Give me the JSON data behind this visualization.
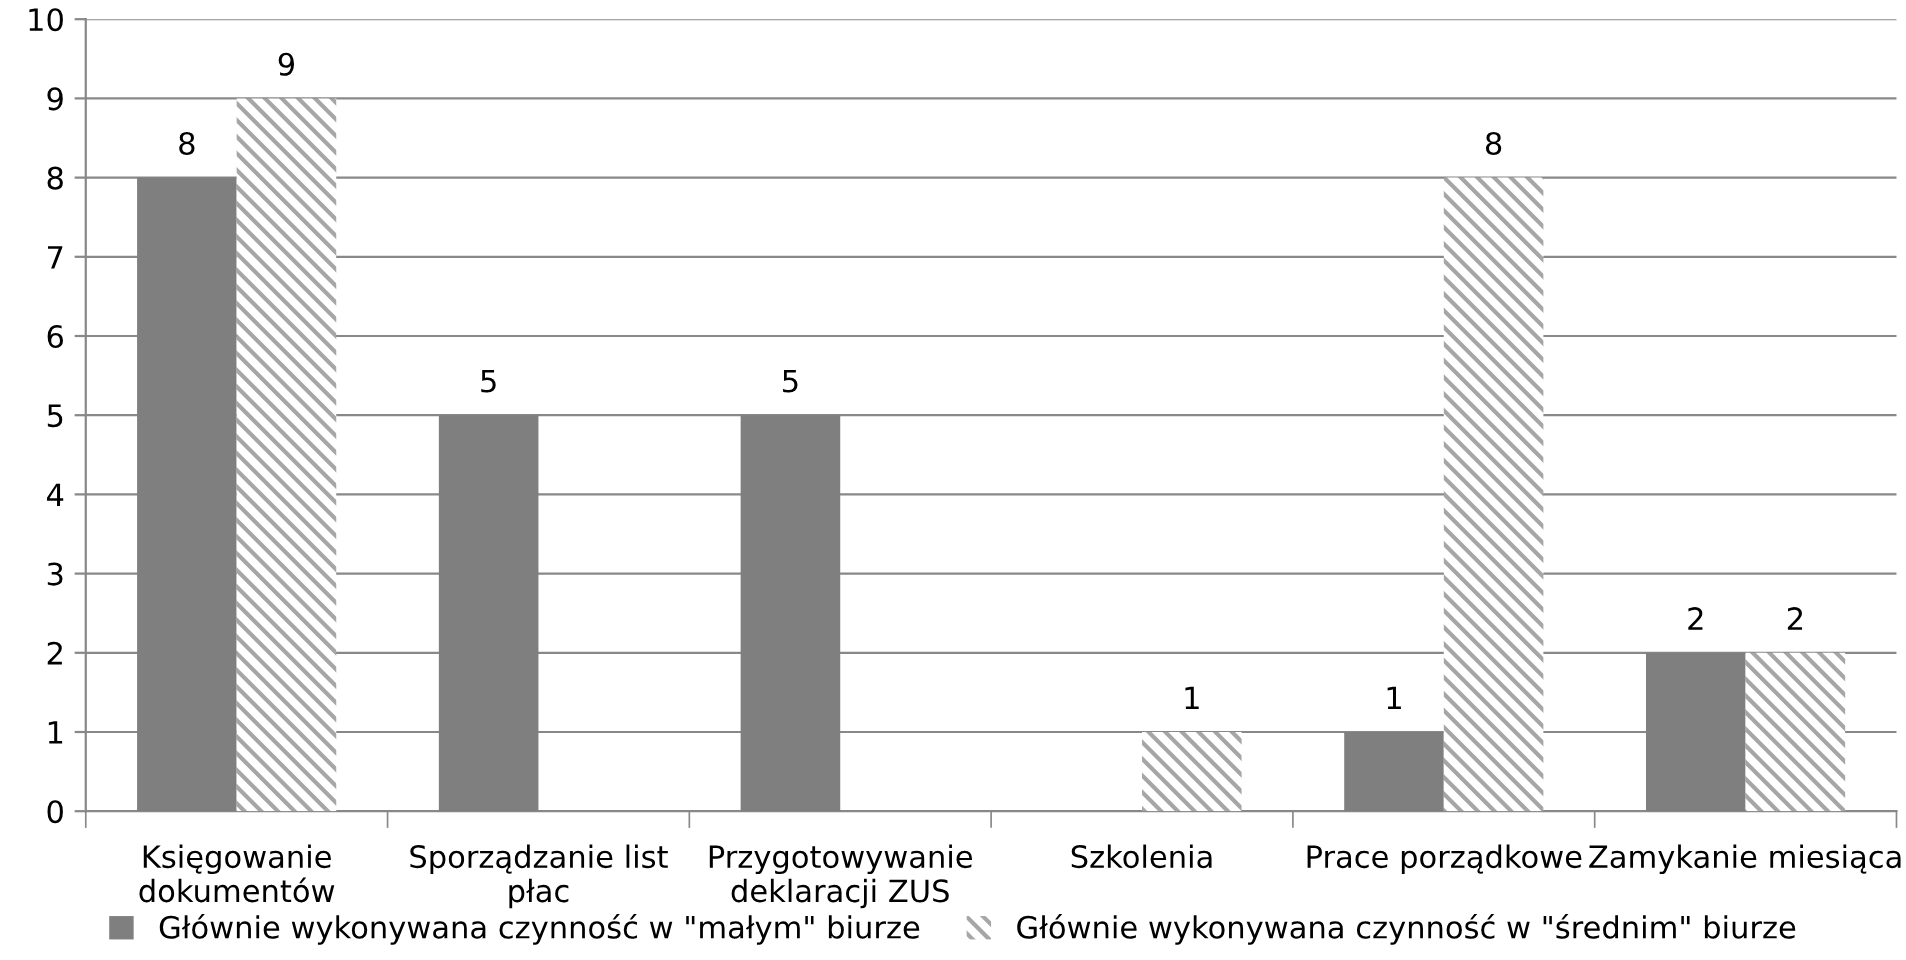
{
  "chart_data": {
    "type": "bar",
    "categories": [
      "Księgowanie\ndokumentów",
      "Sporządzanie list\npłac",
      "Przygotowywanie\ndeklaracji ZUS",
      "Szkolenia",
      "Prace porządkowe",
      "Zamykanie miesiąca"
    ],
    "series": [
      {
        "name": "Głównie wykonywana czynność w \"małym\" biurze",
        "color": "#7f7f7f",
        "values": [
          8,
          5,
          5,
          0,
          1,
          2
        ],
        "value_labels": [
          "8",
          "5",
          "5",
          null,
          "1",
          "2"
        ]
      },
      {
        "name": "Głównie wykonywana czynność w \"średnim\" biurze",
        "color": "#a6a6a6",
        "values": [
          9,
          0,
          0,
          1,
          8,
          2
        ],
        "value_labels": [
          "9",
          null,
          null,
          "1",
          "8",
          "2"
        ]
      }
    ],
    "ylim": [
      0,
      10
    ],
    "yticks": [
      0,
      1,
      2,
      3,
      4,
      5,
      6,
      7,
      8,
      9,
      10
    ],
    "grid": "y",
    "legend": "bottom"
  }
}
